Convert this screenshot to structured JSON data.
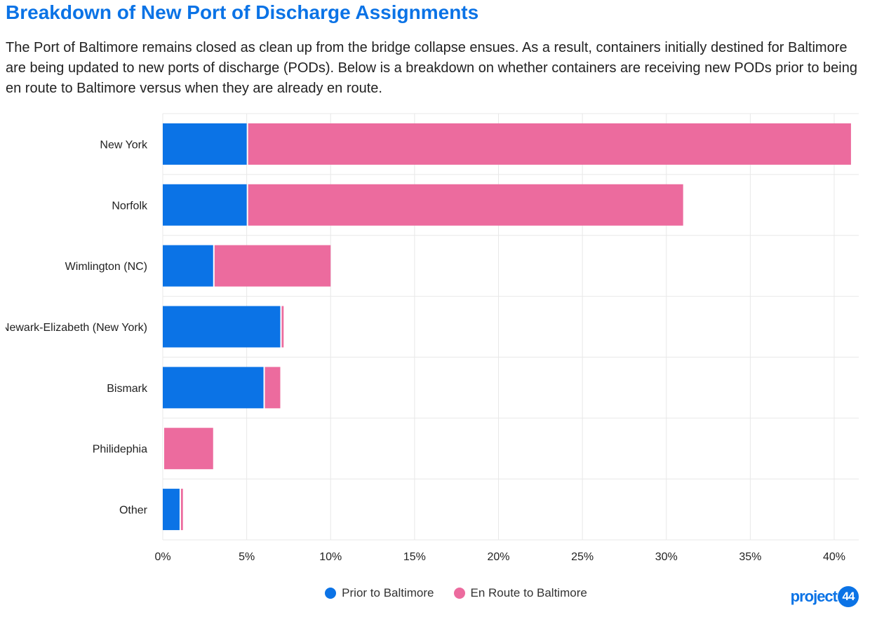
{
  "title": "Breakdown of New Port of Discharge Assignments",
  "subtitle": "The Port of Baltimore remains closed as clean up from the bridge collapse ensues. As a result, containers initially destined for Baltimore are being updated to new ports of discharge (PODs). Below is a breakdown on whether containers are receiving new PODs prior to being en route to Baltimore versus when they are already en route.",
  "colors": {
    "prior": "#0b73e6",
    "enroute": "#ec6b9e",
    "grid": "#e8e8e8",
    "brand": "#0b73e6"
  },
  "chart_data": {
    "type": "bar",
    "orientation": "horizontal",
    "stacked": true,
    "categories": [
      "New York",
      "Norfolk",
      "Wimlington (NC)",
      "Newark-Elizabeth (New York)",
      "Bismark",
      "Philidephia",
      "Other"
    ],
    "series": [
      {
        "name": "Prior to Baltimore",
        "values": [
          5,
          5,
          3,
          7,
          6,
          0,
          1
        ]
      },
      {
        "name": "En Route to Baltimore",
        "values": [
          36,
          26,
          7,
          0.2,
          1,
          3,
          0.2
        ]
      }
    ],
    "xlim": [
      0,
      42
    ],
    "xticks": [
      0,
      5,
      10,
      15,
      20,
      25,
      30,
      35,
      40
    ],
    "xtick_labels": [
      "0%",
      "5%",
      "10%",
      "15%",
      "20%",
      "25%",
      "30%",
      "35%",
      "40%"
    ],
    "grid": true,
    "legend_position": "bottom-center"
  },
  "logo": {
    "text": "project",
    "number": "44"
  }
}
